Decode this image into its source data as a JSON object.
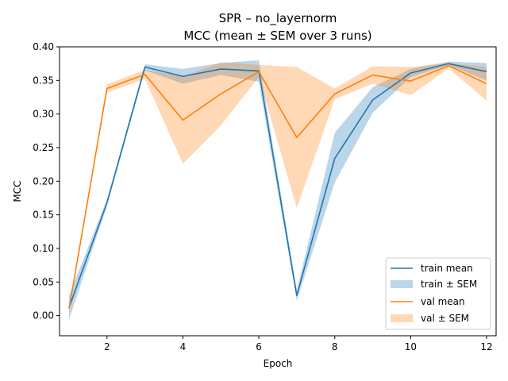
{
  "chart_data": {
    "type": "line",
    "title": "SPR – no_layernorm",
    "subtitle": "MCC (mean ± SEM over 3 runs)",
    "xlabel": "Epoch",
    "ylabel": "MCC",
    "xlim": [
      0.75,
      12.25
    ],
    "ylim": [
      -0.03,
      0.4
    ],
    "xticks": [
      2,
      4,
      6,
      8,
      10,
      12
    ],
    "yticks": [
      0.0,
      0.05,
      0.1,
      0.15,
      0.2,
      0.25,
      0.3,
      0.35,
      0.4
    ],
    "grid": false,
    "legend_position": "lower-right",
    "x": [
      1,
      2,
      3,
      4,
      5,
      6,
      7,
      8,
      9,
      10,
      11,
      12
    ],
    "series": [
      {
        "name": "train mean",
        "band_name": "train ± SEM",
        "color": "#1f77b4",
        "band_color": "#1f77b4",
        "values": [
          0.012,
          0.168,
          0.37,
          0.356,
          0.367,
          0.364,
          0.03,
          0.234,
          0.321,
          0.361,
          0.375,
          0.363
        ],
        "lower": [
          -0.006,
          0.163,
          0.365,
          0.345,
          0.358,
          0.348,
          0.022,
          0.198,
          0.302,
          0.355,
          0.373,
          0.35
        ],
        "upper": [
          0.03,
          0.173,
          0.374,
          0.367,
          0.376,
          0.38,
          0.038,
          0.272,
          0.34,
          0.367,
          0.378,
          0.376
        ]
      },
      {
        "name": "val mean",
        "band_name": "val ± SEM",
        "color": "#ff7f0e",
        "band_color": "#ff7f0e",
        "values": [
          0.01,
          0.338,
          0.359,
          0.291,
          0.33,
          0.363,
          0.265,
          0.33,
          0.358,
          0.349,
          0.372,
          0.345
        ],
        "lower": [
          0.007,
          0.332,
          0.352,
          0.226,
          0.283,
          0.355,
          0.16,
          0.322,
          0.345,
          0.328,
          0.368,
          0.32
        ],
        "upper": [
          0.013,
          0.344,
          0.366,
          0.356,
          0.377,
          0.373,
          0.37,
          0.338,
          0.371,
          0.37,
          0.376,
          0.37
        ]
      }
    ]
  }
}
